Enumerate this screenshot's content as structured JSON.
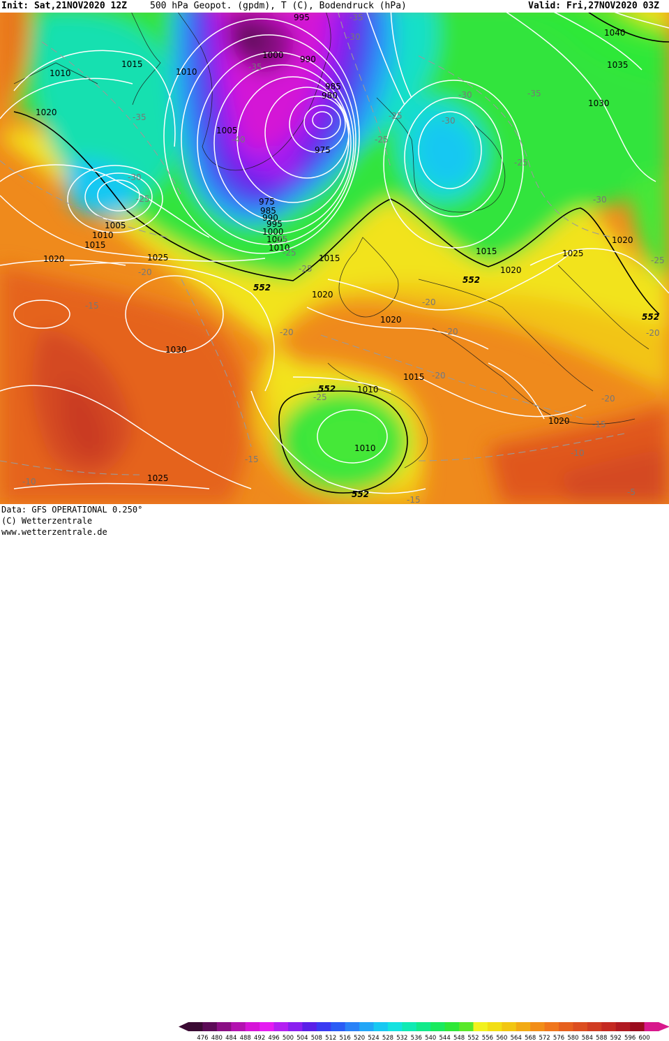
{
  "header": {
    "init": "Init: Sat,21NOV2020 12Z",
    "title": "500 hPa Geopot. (gpdm), T (C), Bodendruck (hPa)",
    "valid": "Valid: Fri,27NOV2020 03Z"
  },
  "footer": {
    "data_source": "Data: GFS OPERATIONAL 0.250°",
    "copyright": "(C) Wetterzentrale",
    "website": "www.wetterzentrale.de"
  },
  "colorbar": {
    "labels": [
      "476",
      "480",
      "484",
      "488",
      "492",
      "496",
      "500",
      "504",
      "508",
      "512",
      "516",
      "520",
      "524",
      "528",
      "532",
      "536",
      "540",
      "544",
      "548",
      "552",
      "556",
      "560",
      "564",
      "568",
      "572",
      "576",
      "580",
      "584",
      "588",
      "592",
      "596",
      "600"
    ],
    "colors": [
      "#3a0a33",
      "#5c0b57",
      "#8a0f84",
      "#b312b0",
      "#d614d8",
      "#e51cf2",
      "#b420f2",
      "#8a20f0",
      "#5a20e8",
      "#3a3af2",
      "#2a5cf5",
      "#2a82f7",
      "#22a6f7",
      "#18c8f2",
      "#14e2e0",
      "#10eab4",
      "#12ea8a",
      "#1aea5e",
      "#2ee838",
      "#5ae82a",
      "#f2f21e",
      "#f2de14",
      "#f2c612",
      "#f2aa14",
      "#f28e18",
      "#f0761c",
      "#e6601e",
      "#dc4e20",
      "#d03c22",
      "#c42a22",
      "#b01a22",
      "#9a0c1e",
      "#d8188c"
    ]
  },
  "map": {
    "pressure_labels": [
      "995",
      "1000",
      "990",
      "985",
      "980",
      "975",
      "1010",
      "1015",
      "1010",
      "1020",
      "1005",
      "975",
      "985",
      "990",
      "995",
      "1000",
      "1005",
      "1010",
      "1005",
      "1010",
      "1015",
      "1020",
      "1025",
      "1030",
      "1025",
      "1015",
      "1020",
      "1020",
      "1015",
      "1010",
      "1010",
      "1015",
      "1020",
      "1040",
      "1035",
      "1030",
      "1025",
      "1020",
      "1020"
    ],
    "temperature_labels": [
      "-35",
      "-30",
      "-35",
      "-35",
      "-40",
      "-30",
      "-25",
      "-25",
      "-25",
      "-30",
      "-30",
      "-35",
      "-25",
      "-30",
      "-25",
      "-25",
      "-25",
      "-20",
      "-15",
      "-20",
      "-20",
      "-20",
      "-20",
      "-25",
      "-20",
      "-20",
      "-15",
      "-10",
      "-15",
      "-15",
      "-10",
      "-5",
      "-25"
    ],
    "height_552_labels": [
      "552",
      "552",
      "552",
      "552",
      "552"
    ]
  }
}
